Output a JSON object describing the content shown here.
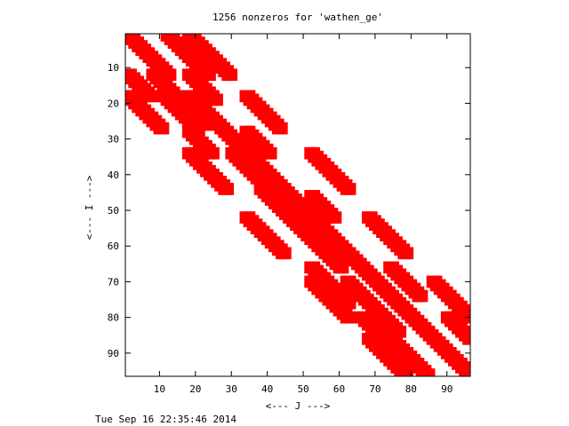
{
  "chart_data": {
    "type": "scatter",
    "title": "1256 nonzeros for 'wathen_ge'",
    "xlabel": "<--- J --->",
    "ylabel": "<--- I --->",
    "xlim": [
      0.5,
      96.5
    ],
    "ylim": [
      96.5,
      0.5
    ],
    "y_axis_inverted": true,
    "xticks": [
      10,
      20,
      30,
      40,
      50,
      60,
      70,
      80,
      90
    ],
    "yticks": [
      10,
      20,
      30,
      40,
      50,
      60,
      70,
      80,
      90
    ],
    "grid": false,
    "marker_color": "#ff0000",
    "n_rows": 96,
    "n_cols": 96,
    "nnz": 1256,
    "series": [
      {
        "kind": "band",
        "rows": [
          1,
          12
        ],
        "cols": [
          1,
          12
        ]
      },
      {
        "kind": "band",
        "rows": [
          1,
          12
        ],
        "cols": [
          12,
          23
        ]
      },
      {
        "kind": "band",
        "rows": [
          1,
          12
        ],
        "cols": [
          18,
          29
        ]
      },
      {
        "kind": "band",
        "rows": [
          12,
          18
        ],
        "cols": [
          1,
          7
        ]
      },
      {
        "kind": "band",
        "rows": [
          12,
          26
        ],
        "cols": [
          8,
          22
        ]
      },
      {
        "kind": "band",
        "rows": [
          12,
          19
        ],
        "cols": [
          18,
          25
        ]
      },
      {
        "kind": "band",
        "rows": [
          18,
          27
        ],
        "cols": [
          1,
          10
        ]
      },
      {
        "kind": "band",
        "rows": [
          18,
          27
        ],
        "cols": [
          11,
          20
        ]
      },
      {
        "kind": "band",
        "rows": [
          18,
          34
        ],
        "cols": [
          18,
          34
        ]
      },
      {
        "kind": "band",
        "rows": [
          28,
          34
        ],
        "cols": [
          18,
          24
        ]
      },
      {
        "kind": "band",
        "rows": [
          18,
          27
        ],
        "cols": [
          34,
          43
        ]
      },
      {
        "kind": "band",
        "rows": [
          28,
          46
        ],
        "cols": [
          28,
          46
        ]
      },
      {
        "kind": "band",
        "rows": [
          28,
          34
        ],
        "cols": [
          34,
          40
        ]
      },
      {
        "kind": "band",
        "rows": [
          34,
          44
        ],
        "cols": [
          18,
          28
        ]
      },
      {
        "kind": "band",
        "rows": [
          34,
          44
        ],
        "cols": [
          30,
          40
        ]
      },
      {
        "kind": "band",
        "rows": [
          44,
          52
        ],
        "cols": [
          38,
          46
        ]
      },
      {
        "kind": "band",
        "rows": [
          34,
          44
        ],
        "cols": [
          52,
          62
        ]
      },
      {
        "kind": "band",
        "rows": [
          46,
          66
        ],
        "cols": [
          46,
          66
        ]
      },
      {
        "kind": "band",
        "rows": [
          46,
          52
        ],
        "cols": [
          52,
          58
        ]
      },
      {
        "kind": "band",
        "rows": [
          52,
          62
        ],
        "cols": [
          34,
          44
        ]
      },
      {
        "kind": "band",
        "rows": [
          52,
          66
        ],
        "cols": [
          46,
          60
        ]
      },
      {
        "kind": "band",
        "rows": [
          52,
          62
        ],
        "cols": [
          68,
          78
        ]
      },
      {
        "kind": "band",
        "rows": [
          66,
          76
        ],
        "cols": [
          52,
          62
        ]
      },
      {
        "kind": "band",
        "rows": [
          66,
          84
        ],
        "cols": [
          66,
          84
        ]
      },
      {
        "kind": "band",
        "rows": [
          66,
          74
        ],
        "cols": [
          74,
          82
        ]
      },
      {
        "kind": "band",
        "rows": [
          70,
          80
        ],
        "cols": [
          52,
          62
        ]
      },
      {
        "kind": "band",
        "rows": [
          70,
          84
        ],
        "cols": [
          62,
          76
        ]
      },
      {
        "kind": "band",
        "rows": [
          70,
          80
        ],
        "cols": [
          86,
          96
        ]
      },
      {
        "kind": "band",
        "rows": [
          80,
          86
        ],
        "cols": [
          66,
          72
        ]
      },
      {
        "kind": "band",
        "rows": [
          80,
          96
        ],
        "cols": [
          80,
          96
        ]
      },
      {
        "kind": "band",
        "rows": [
          80,
          86
        ],
        "cols": [
          90,
          96
        ]
      },
      {
        "kind": "band",
        "rows": [
          86,
          96
        ],
        "cols": [
          68,
          78
        ]
      },
      {
        "kind": "band",
        "rows": [
          86,
          96
        ],
        "cols": [
          74,
          84
        ]
      },
      {
        "kind": "band",
        "rows": [
          86,
          96
        ],
        "cols": [
          86,
          96
        ]
      }
    ]
  },
  "footer": {
    "timestamp": "Tue Sep 16 22:35:46 2014"
  }
}
